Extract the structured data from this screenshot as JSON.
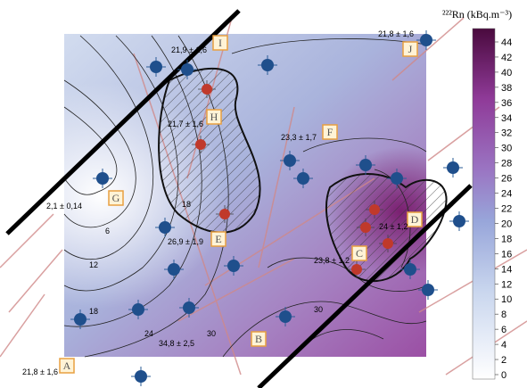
{
  "colorbar": {
    "title": "²²²Rn (kBq.m⁻³)",
    "ticks": [
      0,
      2,
      4,
      6,
      8,
      10,
      12,
      14,
      16,
      18,
      20,
      22,
      24,
      26,
      28,
      30,
      32,
      34,
      36,
      38,
      40,
      42,
      44
    ]
  },
  "points": [
    {
      "letter": "A",
      "measurement": "21,8 ± 1,6"
    },
    {
      "letter": "B",
      "measurement": "34,8 ± 2,5"
    },
    {
      "letter": "C",
      "measurement": "23,8 ± 1,2"
    },
    {
      "letter": "D",
      "measurement": "24 ± 1,2"
    },
    {
      "letter": "E",
      "measurement": "26,9 ± 1,9"
    },
    {
      "letter": "F",
      "measurement": "23,3 ± 1,7"
    },
    {
      "letter": "G",
      "measurement": "2,1 ± 0,14"
    },
    {
      "letter": "H",
      "measurement": "21,7 ± 1,6"
    },
    {
      "letter": "I",
      "measurement": "21,9 ± 1,6"
    },
    {
      "letter": "J",
      "measurement": "21,8 ± 1,6"
    }
  ],
  "contour_labels": [
    "6",
    "12",
    "18",
    "24",
    "30",
    "30",
    "18"
  ]
}
